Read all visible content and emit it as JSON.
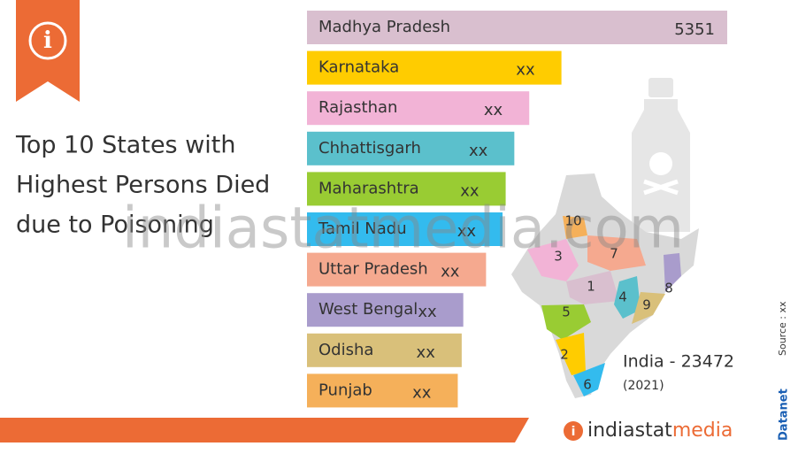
{
  "chart_data": {
    "type": "bar",
    "title": [
      "Top 10 States with",
      "Highest Persons Died",
      "due to Poisoning"
    ],
    "categories": [
      "Madhya Pradesh",
      "Karnataka",
      "Rajasthan",
      "Chhattisgarh",
      "Maharashtra",
      "Tamil Nadu",
      "Uttar Pradesh",
      "West Bengal",
      "Odisha",
      "Punjab"
    ],
    "values": [
      5351,
      3240,
      2830,
      2640,
      2530,
      2490,
      2280,
      1990,
      1970,
      1920
    ],
    "value_labels": [
      "5351",
      "xx",
      "xx",
      "xx",
      "xx",
      "xx",
      "xx",
      "xx",
      "xx",
      "xx"
    ],
    "colors": [
      "#d9bfcf",
      "#ffcc00",
      "#f2b3d6",
      "#5bc0cc",
      "#99cc33",
      "#33bbee",
      "#f5a98f",
      "#a99ccc",
      "#d9c07a",
      "#f5b05a"
    ],
    "total_label": "India - 23472",
    "year": "(2021)",
    "map_labels": [
      10,
      3,
      7,
      1,
      8,
      4,
      9,
      5,
      2,
      6
    ],
    "source": "Source : xx",
    "brand": "Datanet",
    "watermark": "indiastatmedia.com",
    "logo": [
      "indiastat",
      "media"
    ]
  }
}
